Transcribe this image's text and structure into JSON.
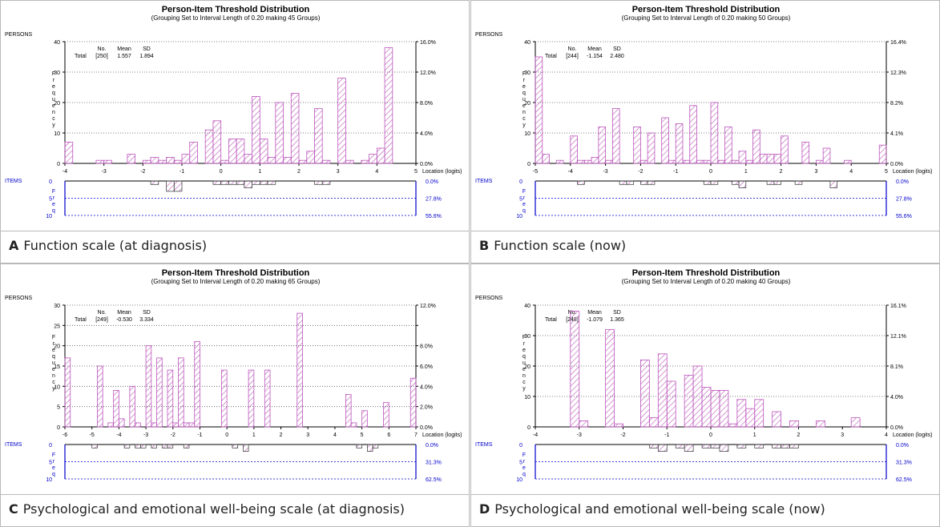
{
  "colors": {
    "bar": "#bb55bb",
    "axis": "#000000",
    "items_axis": "#0000cc",
    "dotted": "#555555"
  },
  "common": {
    "title": "Person-Item Threshold Distribution",
    "persons_label": "PERSONS",
    "items_label": "ITEMS",
    "y_axis_letters": [
      "F",
      "r",
      "e",
      "q",
      "u",
      "e",
      "n",
      "c",
      "y"
    ],
    "items_y_letters": [
      "F",
      "r",
      "e",
      "q"
    ],
    "location_label": "Location (logits)",
    "stats_header": [
      "No.",
      "Mean",
      "SD"
    ],
    "total_label": "Total"
  },
  "panels": [
    {
      "letter": "A",
      "caption": "Function scale (at diagnosis)",
      "subtitle": "(Grouping Set to Interval Length of 0.20  making 45  Groups)",
      "stats": {
        "no": "[250]",
        "mean": "1.557",
        "sd": "1.894"
      },
      "chart_data": {
        "type": "bar",
        "title": "Person-Item Threshold Distribution",
        "xlim": [
          -4,
          5
        ],
        "x_ticks": [
          "-4",
          "-3",
          "-2",
          "-1",
          "0",
          "1",
          "2",
          "3",
          "4",
          "5"
        ],
        "ylim": [
          0,
          40
        ],
        "y_ticks": [
          "0",
          "10",
          "20",
          "30",
          "40"
        ],
        "y2_ticks": [
          "0.0%",
          "4.0%",
          "8.0%",
          "12.0%",
          "16.0%"
        ],
        "items_ylim": [
          0,
          10
        ],
        "items_y_ticks": [
          "0",
          "5",
          "10"
        ],
        "items_y2_ticks": [
          "0.0%",
          "27.8%",
          "55.6%"
        ],
        "bin": 0.2,
        "persons": [
          [
            -4,
            7
          ],
          [
            -3.2,
            1
          ],
          [
            -3,
            1
          ],
          [
            -2.4,
            3
          ],
          [
            -2,
            1
          ],
          [
            -1.8,
            2
          ],
          [
            -1.6,
            1
          ],
          [
            -1.4,
            2
          ],
          [
            -1.2,
            1
          ],
          [
            -1,
            3
          ],
          [
            -0.8,
            7
          ],
          [
            -0.4,
            11
          ],
          [
            -0.2,
            14
          ],
          [
            0,
            1
          ],
          [
            0.2,
            8
          ],
          [
            0.4,
            8
          ],
          [
            0.6,
            3
          ],
          [
            0.8,
            22
          ],
          [
            1,
            8
          ],
          [
            1.2,
            2
          ],
          [
            1.4,
            20
          ],
          [
            1.6,
            2
          ],
          [
            1.8,
            23
          ],
          [
            2,
            1
          ],
          [
            2.2,
            4
          ],
          [
            2.4,
            18
          ],
          [
            2.6,
            1
          ],
          [
            3,
            28
          ],
          [
            3.2,
            1
          ],
          [
            3.6,
            1
          ],
          [
            3.8,
            3
          ],
          [
            4,
            5
          ],
          [
            4.2,
            38
          ]
        ],
        "items": [
          [
            -1.8,
            1
          ],
          [
            -1.4,
            3
          ],
          [
            -1.2,
            3
          ],
          [
            -0.2,
            1
          ],
          [
            0,
            1
          ],
          [
            0.2,
            1
          ],
          [
            0.4,
            1
          ],
          [
            0.6,
            2
          ],
          [
            0.8,
            1
          ],
          [
            1,
            1
          ],
          [
            1.2,
            1
          ],
          [
            2.4,
            1
          ],
          [
            2.6,
            1
          ]
        ]
      }
    },
    {
      "letter": "B",
      "caption": "Function scale (now)",
      "subtitle": "(Grouping Set to Interval Length of 0.20  making 50  Groups)",
      "stats": {
        "no": "[244]",
        "mean": "-1.154",
        "sd": "2.480"
      },
      "chart_data": {
        "type": "bar",
        "title": "Person-Item Threshold Distribution",
        "xlim": [
          -5,
          5
        ],
        "x_ticks": [
          "-5",
          "-4",
          "-3",
          "-2",
          "-1",
          "0",
          "1",
          "2",
          "3",
          "4",
          "5"
        ],
        "ylim": [
          0,
          40
        ],
        "y_ticks": [
          "0",
          "10",
          "20",
          "30",
          "40"
        ],
        "y2_ticks": [
          "0.0%",
          "4.1%",
          "8.2%",
          "12.3%",
          "16.4%"
        ],
        "items_ylim": [
          0,
          10
        ],
        "items_y_ticks": [
          "0",
          "5",
          "10"
        ],
        "items_y2_ticks": [
          "0.0%",
          "27.8%",
          "55.6%"
        ],
        "bin": 0.2,
        "persons": [
          [
            -5,
            35
          ],
          [
            -4.8,
            3
          ],
          [
            -4.4,
            1
          ],
          [
            -4,
            9
          ],
          [
            -3.8,
            1
          ],
          [
            -3.6,
            1
          ],
          [
            -3.4,
            2
          ],
          [
            -3.2,
            12
          ],
          [
            -3,
            1
          ],
          [
            -2.8,
            18
          ],
          [
            -2.2,
            12
          ],
          [
            -2,
            1
          ],
          [
            -1.8,
            10
          ],
          [
            -1.4,
            15
          ],
          [
            -1.2,
            1
          ],
          [
            -1,
            13
          ],
          [
            -0.8,
            1
          ],
          [
            -0.6,
            19
          ],
          [
            -0.4,
            1
          ],
          [
            -0.2,
            1
          ],
          [
            0,
            20
          ],
          [
            0.2,
            1
          ],
          [
            0.4,
            12
          ],
          [
            0.6,
            1
          ],
          [
            0.8,
            4
          ],
          [
            1,
            1
          ],
          [
            1.2,
            11
          ],
          [
            1.4,
            3
          ],
          [
            1.6,
            3
          ],
          [
            1.8,
            3
          ],
          [
            2,
            9
          ],
          [
            2.6,
            7
          ],
          [
            3,
            1
          ],
          [
            3.2,
            5
          ],
          [
            3.8,
            1
          ],
          [
            4.8,
            6
          ]
        ],
        "items": [
          [
            -3.8,
            1
          ],
          [
            -2.6,
            1
          ],
          [
            -2.4,
            1
          ],
          [
            -2,
            1
          ],
          [
            -1.8,
            1
          ],
          [
            -0.2,
            1
          ],
          [
            0,
            1
          ],
          [
            0.6,
            1
          ],
          [
            0.8,
            2
          ],
          [
            1.6,
            1
          ],
          [
            1.8,
            1
          ],
          [
            2.4,
            1
          ],
          [
            3.4,
            2
          ]
        ]
      }
    },
    {
      "letter": "C",
      "caption": "Psychological and emotional well-being scale (at diagnosis)",
      "subtitle": "(Grouping Set to Interval Length of 0.20  making 65  Groups)",
      "stats": {
        "no": "[249]",
        "mean": "-0.530",
        "sd": "3.334"
      },
      "chart_data": {
        "type": "bar",
        "title": "Person-Item Threshold Distribution",
        "xlim": [
          -6,
          7
        ],
        "x_ticks": [
          "-6",
          "-5",
          "-4",
          "-3",
          "-2",
          "-1",
          "0",
          "1",
          "2",
          "3",
          "4",
          "5",
          "6",
          "7"
        ],
        "ylim": [
          0,
          30
        ],
        "y_ticks": [
          "0",
          "5",
          "10",
          "15",
          "20",
          "25",
          "30"
        ],
        "y2_ticks": [
          "0.0%",
          "2.0%",
          "4.0%",
          "6.0%",
          "8.0%",
          "",
          "12.0%"
        ],
        "items_ylim": [
          0,
          10
        ],
        "items_y_ticks": [
          "0",
          "5",
          "10"
        ],
        "items_y2_ticks": [
          "0.0%",
          "31.3%",
          "62.5%"
        ],
        "bin": 0.2,
        "persons": [
          [
            -6,
            17
          ],
          [
            -4.8,
            15
          ],
          [
            -4.4,
            1
          ],
          [
            -4.2,
            9
          ],
          [
            -4,
            2
          ],
          [
            -3.6,
            10
          ],
          [
            -3.4,
            1
          ],
          [
            -3,
            20
          ],
          [
            -2.8,
            1
          ],
          [
            -2.6,
            17
          ],
          [
            -2.2,
            14
          ],
          [
            -2,
            1
          ],
          [
            -1.8,
            17
          ],
          [
            -1.6,
            1
          ],
          [
            -1.4,
            1
          ],
          [
            -1.2,
            21
          ],
          [
            -0.2,
            14
          ],
          [
            0.8,
            14
          ],
          [
            1.4,
            14
          ],
          [
            2.6,
            28
          ],
          [
            4.4,
            8
          ],
          [
            4.6,
            1
          ],
          [
            5,
            4
          ],
          [
            5.8,
            6
          ],
          [
            6.8,
            12
          ]
        ],
        "items": [
          [
            -5,
            1
          ],
          [
            -3.8,
            1
          ],
          [
            -3.4,
            1
          ],
          [
            -3.2,
            1
          ],
          [
            -2.8,
            1
          ],
          [
            -2.4,
            1
          ],
          [
            -2.2,
            1
          ],
          [
            -1.6,
            1
          ],
          [
            0.2,
            1
          ],
          [
            0.6,
            2
          ],
          [
            4.8,
            1
          ],
          [
            5.2,
            2
          ],
          [
            5.4,
            1
          ]
        ]
      }
    },
    {
      "letter": "D",
      "caption": "Psychological and emotional well-being scale (now)",
      "subtitle": "(Grouping Set to Interval Length of 0.20  making 40  Groups)",
      "stats": {
        "no": "[248]",
        "mean": "-1.079",
        "sd": "1.365"
      },
      "chart_data": {
        "type": "bar",
        "title": "Person-Item Threshold Distribution",
        "xlim": [
          -4,
          4
        ],
        "x_ticks": [
          "-4",
          "-3",
          "-2",
          "-1",
          "0",
          "1",
          "2",
          "3",
          "4"
        ],
        "ylim": [
          0,
          40
        ],
        "y_ticks": [
          "0",
          "10",
          "20",
          "30",
          "40"
        ],
        "y2_ticks": [
          "0.0%",
          "4.0%",
          "8.1%",
          "12.1%",
          "16.1%"
        ],
        "items_ylim": [
          0,
          10
        ],
        "items_y_ticks": [
          "0",
          "5",
          "10"
        ],
        "items_y2_ticks": [
          "0.0%",
          "31.3%",
          "62.5%"
        ],
        "bin": 0.2,
        "persons": [
          [
            -3.2,
            38
          ],
          [
            -3,
            2
          ],
          [
            -2.4,
            32
          ],
          [
            -2.2,
            1
          ],
          [
            -1.6,
            22
          ],
          [
            -1.4,
            3
          ],
          [
            -1.2,
            24
          ],
          [
            -1,
            15
          ],
          [
            -0.6,
            17
          ],
          [
            -0.4,
            20
          ],
          [
            -0.2,
            13
          ],
          [
            0,
            12
          ],
          [
            0.2,
            12
          ],
          [
            0.4,
            1
          ],
          [
            0.6,
            9
          ],
          [
            0.8,
            6
          ],
          [
            1,
            9
          ],
          [
            1.4,
            5
          ],
          [
            1.8,
            2
          ],
          [
            2.4,
            2
          ],
          [
            3.2,
            3
          ]
        ],
        "items": [
          [
            -1.4,
            1
          ],
          [
            -1.2,
            2
          ],
          [
            -0.8,
            1
          ],
          [
            -0.6,
            2
          ],
          [
            -0.2,
            1
          ],
          [
            0,
            1
          ],
          [
            0.2,
            2
          ],
          [
            0.6,
            1
          ],
          [
            1,
            1
          ],
          [
            1.4,
            1
          ],
          [
            1.6,
            1
          ],
          [
            1.8,
            1
          ]
        ]
      }
    }
  ]
}
